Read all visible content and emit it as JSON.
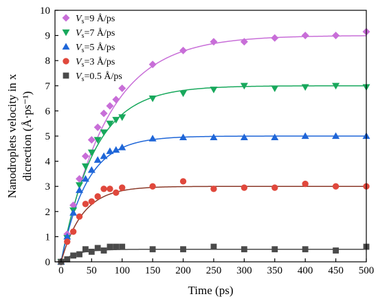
{
  "chart_data": {
    "type": "scatter",
    "title": "",
    "xlabel": "Time (ps)",
    "ylabel_lines": [
      "Nanodroplets velocity in x",
      "dicrection (Å·ps⁻¹)"
    ],
    "xlim": [
      -10,
      500
    ],
    "ylim": [
      0,
      10
    ],
    "xticks": [
      0,
      50,
      100,
      150,
      200,
      250,
      300,
      350,
      400,
      450,
      500
    ],
    "yticks": [
      0,
      1,
      2,
      3,
      4,
      5,
      6,
      7,
      8,
      9,
      10
    ],
    "grid": false,
    "legend_position": "top-left",
    "series": [
      {
        "name": "Vs=9 Å/ps",
        "legend_sub": "s",
        "legend_rest": "=9 Å/ps",
        "marker": "diamond",
        "color": "#c86ed8",
        "fit_color": "#c86ed8",
        "fit_plateau": 9.0,
        "fit_tau": 75,
        "x": [
          0,
          10,
          20,
          30,
          40,
          50,
          60,
          70,
          80,
          90,
          100,
          150,
          200,
          250,
          300,
          350,
          400,
          450,
          500
        ],
        "y": [
          0,
          1.1,
          2.25,
          3.3,
          4.2,
          4.85,
          5.35,
          5.9,
          6.2,
          6.45,
          6.9,
          7.85,
          8.4,
          8.75,
          8.75,
          8.9,
          9.0,
          9.0,
          9.15
        ]
      },
      {
        "name": "Vs=7 Å/ps",
        "legend_sub": "s",
        "legend_rest": "=7 Å/ps",
        "marker": "triangle-down",
        "color": "#18a85c",
        "fit_color": "#18a85c",
        "fit_plateau": 7.0,
        "fit_tau": 55,
        "x": [
          0,
          10,
          20,
          30,
          40,
          50,
          60,
          70,
          80,
          90,
          100,
          150,
          200,
          250,
          300,
          350,
          400,
          450,
          500
        ],
        "y": [
          0,
          0.95,
          2.05,
          3.05,
          3.8,
          4.35,
          4.85,
          5.15,
          5.5,
          5.65,
          5.75,
          6.5,
          6.7,
          6.85,
          7.0,
          6.9,
          6.95,
          7.0,
          6.95
        ]
      },
      {
        "name": "Vs=5 Å/ps",
        "legend_sub": "s",
        "legend_rest": "=5 Å/ps",
        "marker": "triangle-up",
        "color": "#1f66d8",
        "fit_color": "#1f66d8",
        "fit_plateau": 5.0,
        "fit_tau": 42,
        "x": [
          0,
          10,
          20,
          30,
          40,
          50,
          60,
          70,
          80,
          90,
          100,
          150,
          200,
          250,
          300,
          350,
          400,
          450,
          500
        ],
        "y": [
          0,
          1.0,
          1.95,
          2.85,
          3.3,
          3.65,
          4.05,
          4.2,
          4.4,
          4.45,
          4.55,
          4.9,
          4.95,
          4.95,
          4.95,
          4.95,
          5.0,
          5.0,
          5.0
        ]
      },
      {
        "name": "Vs=3 Å/ps",
        "legend_sub": "s",
        "legend_rest": "=3 Å/ps",
        "marker": "circle",
        "color": "#e0483c",
        "fit_color": "#8b3a2a",
        "fit_plateau": 3.0,
        "fit_tau": 35,
        "x": [
          0,
          10,
          20,
          30,
          40,
          50,
          60,
          70,
          80,
          90,
          100,
          150,
          200,
          250,
          300,
          350,
          400,
          450,
          500
        ],
        "y": [
          0,
          0.8,
          1.2,
          1.8,
          2.3,
          2.4,
          2.6,
          2.9,
          2.9,
          2.75,
          2.95,
          3.0,
          3.2,
          2.9,
          2.95,
          2.95,
          3.1,
          3.0,
          3.0
        ]
      },
      {
        "name": "Vs=0.5 Å/ps",
        "legend_sub": "s",
        "legend_rest": "=0.5 Å/ps",
        "marker": "square",
        "color": "#4a4a4a",
        "fit_color": "#4a4a4a",
        "fit_plateau": 0.5,
        "fit_tau": 25,
        "x": [
          0,
          10,
          20,
          30,
          40,
          50,
          60,
          70,
          80,
          90,
          100,
          150,
          200,
          250,
          300,
          350,
          400,
          450,
          500
        ],
        "y": [
          0,
          0.1,
          0.25,
          0.3,
          0.5,
          0.4,
          0.55,
          0.45,
          0.6,
          0.6,
          0.6,
          0.5,
          0.5,
          0.6,
          0.5,
          0.5,
          0.5,
          0.45,
          0.6
        ]
      }
    ]
  }
}
